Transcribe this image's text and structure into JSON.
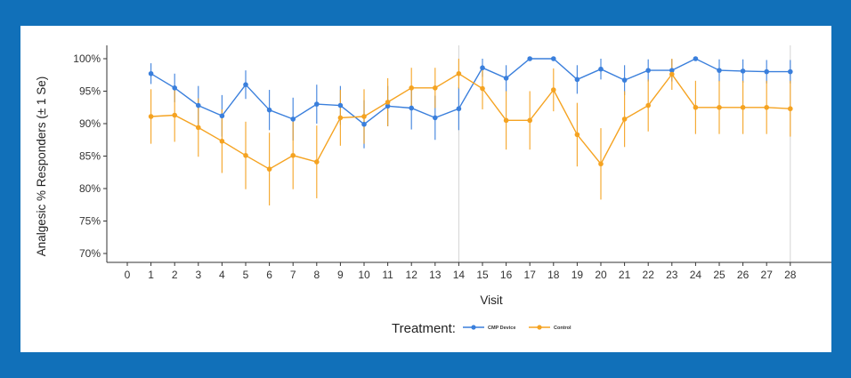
{
  "chart_data": {
    "type": "line",
    "title": "",
    "xlabel": "Visit",
    "ylabel": "Analgesic % Responders (± 1 Se)",
    "x_ticks": [
      0,
      1,
      2,
      3,
      4,
      5,
      6,
      7,
      8,
      9,
      10,
      11,
      12,
      13,
      14,
      15,
      16,
      17,
      18,
      19,
      20,
      21,
      22,
      23,
      24,
      25,
      26,
      27,
      28
    ],
    "y_ticks": [
      "70%",
      "75%",
      "80%",
      "85%",
      "90%",
      "95%",
      "100%"
    ],
    "ylim": [
      69,
      101.5
    ],
    "xlim": [
      0,
      28
    ],
    "reference_lines_x": [
      14,
      28
    ],
    "legend_title": "Treatment:",
    "legend_position": "bottom",
    "series": [
      {
        "name": "CMP Device",
        "color": "#3a7fdc",
        "x": [
          1,
          2,
          3,
          4,
          5,
          6,
          7,
          8,
          9,
          10,
          11,
          12,
          13,
          14,
          15,
          16,
          17,
          18,
          19,
          20,
          21,
          22,
          23,
          24,
          25,
          26,
          27,
          28
        ],
        "values": [
          97.7,
          95.5,
          92.8,
          91.2,
          96.0,
          92.1,
          90.7,
          93.0,
          92.8,
          89.9,
          92.7,
          92.4,
          90.9,
          92.3,
          98.6,
          97.0,
          100.0,
          100.0,
          96.8,
          98.4,
          96.7,
          98.2,
          98.2,
          100.0,
          98.2,
          98.1,
          98.0,
          98.0
        ],
        "err": [
          1.6,
          2.2,
          3.0,
          3.2,
          2.2,
          3.1,
          3.3,
          3.0,
          3.0,
          3.7,
          3.1,
          3.3,
          3.4,
          3.3,
          1.4,
          2.0,
          0.0,
          0.0,
          2.2,
          1.6,
          2.3,
          1.7,
          1.7,
          0.0,
          1.7,
          1.8,
          1.8,
          1.8
        ]
      },
      {
        "name": "Control",
        "color": "#f5a321",
        "x": [
          1,
          2,
          3,
          4,
          5,
          6,
          7,
          8,
          9,
          10,
          11,
          12,
          13,
          14,
          15,
          16,
          17,
          18,
          19,
          20,
          21,
          22,
          23,
          24,
          25,
          26,
          27,
          28
        ],
        "values": [
          91.1,
          91.3,
          89.4,
          87.3,
          85.1,
          83.0,
          85.1,
          84.1,
          90.9,
          91.1,
          93.3,
          95.5,
          95.5,
          97.7,
          95.4,
          90.5,
          90.5,
          95.2,
          88.3,
          83.8,
          90.7,
          92.8,
          97.6,
          92.5,
          92.5,
          92.5,
          92.5,
          92.3
        ],
        "err": [
          4.2,
          4.1,
          4.5,
          4.9,
          5.2,
          5.6,
          5.2,
          5.6,
          4.3,
          4.2,
          3.7,
          3.1,
          3.1,
          2.3,
          3.2,
          4.5,
          4.5,
          3.3,
          4.9,
          5.5,
          4.3,
          4.0,
          2.4,
          4.1,
          4.1,
          4.1,
          4.1,
          4.3
        ]
      }
    ]
  }
}
